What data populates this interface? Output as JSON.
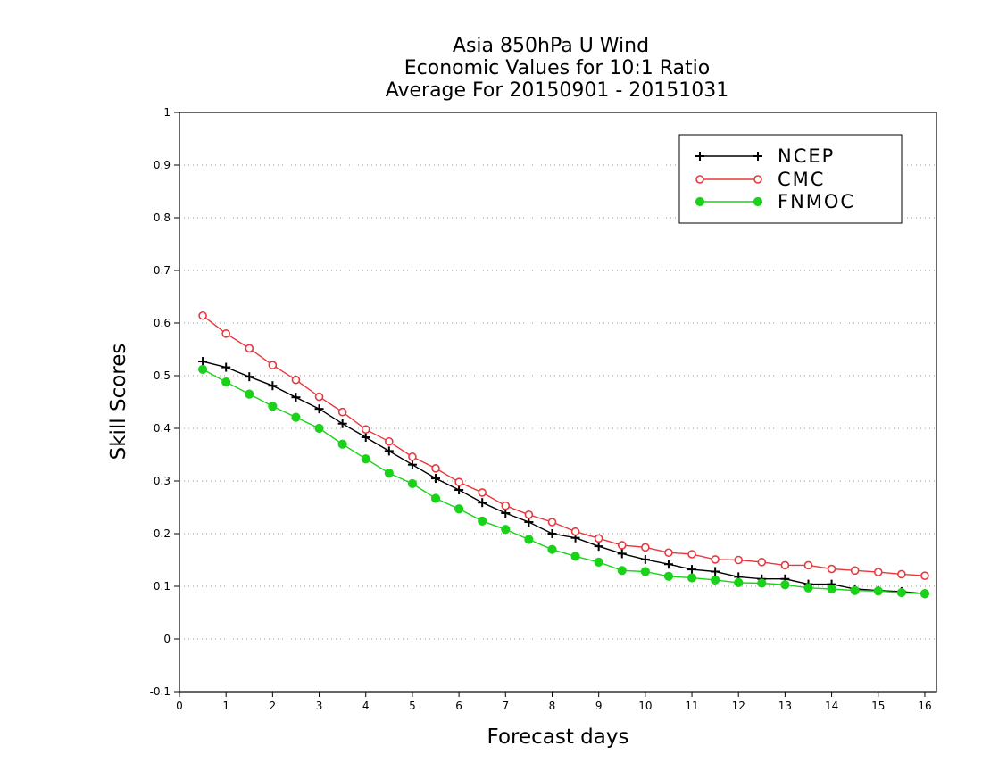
{
  "chart_data": {
    "type": "line",
    "title_lines": [
      "Asia 850hPa U Wind",
      "Economic Values for 10:1 Ratio",
      "Average For 20150901 - 20151031"
    ],
    "xlabel": "Forecast days",
    "ylabel": "Skill Scores",
    "xlim": [
      0,
      16.25
    ],
    "ylim": [
      -0.1,
      1
    ],
    "x_ticks": [
      0,
      1,
      2,
      3,
      4,
      5,
      6,
      7,
      8,
      9,
      10,
      11,
      12,
      13,
      14,
      15,
      16
    ],
    "x_tick_labels": [
      "0",
      "1",
      "2",
      "3",
      "4",
      "5",
      "6",
      "7",
      "8",
      "9",
      "10",
      "11",
      "12",
      "13",
      "14",
      "15",
      "16"
    ],
    "y_ticks": [
      -0.1,
      0,
      0.1,
      0.2,
      0.3,
      0.4,
      0.5,
      0.6,
      0.7,
      0.8,
      0.9,
      1
    ],
    "y_tick_labels": [
      "-0.1",
      "0",
      "0.1",
      "0.2",
      "0.3",
      "0.4",
      "0.5",
      "0.6",
      "0.7",
      "0.8",
      "0.9",
      "1"
    ],
    "grid": "horizontal-dotted",
    "legend_position": "top-right",
    "x": [
      0.5,
      1,
      1.5,
      2,
      2.5,
      3,
      3.5,
      4,
      4.5,
      5,
      5.5,
      6,
      6.5,
      7,
      7.5,
      8,
      8.5,
      9,
      9.5,
      10,
      10.5,
      11,
      11.5,
      12,
      12.5,
      13,
      13.5,
      14,
      14.5,
      15,
      15.5,
      16
    ],
    "series": [
      {
        "name": "NCEP",
        "color": "#000000",
        "marker": "plus",
        "values": [
          0.527,
          0.516,
          0.498,
          0.481,
          0.459,
          0.437,
          0.409,
          0.383,
          0.357,
          0.331,
          0.305,
          0.283,
          0.259,
          0.239,
          0.222,
          0.2,
          0.192,
          0.176,
          0.162,
          0.151,
          0.142,
          0.132,
          0.128,
          0.118,
          0.114,
          0.114,
          0.104,
          0.104,
          0.095,
          0.092,
          0.09,
          0.086
        ]
      },
      {
        "name": "CMC",
        "color": "#e8383d",
        "marker": "open-circle",
        "values": [
          0.614,
          0.58,
          0.552,
          0.52,
          0.492,
          0.46,
          0.431,
          0.398,
          0.375,
          0.346,
          0.324,
          0.298,
          0.278,
          0.253,
          0.236,
          0.222,
          0.204,
          0.191,
          0.178,
          0.174,
          0.164,
          0.161,
          0.151,
          0.15,
          0.146,
          0.14,
          0.14,
          0.133,
          0.13,
          0.127,
          0.123,
          0.12
        ]
      },
      {
        "name": "FNMOC",
        "color": "#19d319",
        "marker": "filled-circle",
        "values": [
          0.512,
          0.488,
          0.465,
          0.442,
          0.421,
          0.4,
          0.37,
          0.342,
          0.315,
          0.295,
          0.267,
          0.247,
          0.224,
          0.208,
          0.189,
          0.17,
          0.157,
          0.146,
          0.13,
          0.128,
          0.119,
          0.116,
          0.112,
          0.107,
          0.106,
          0.103,
          0.097,
          0.095,
          0.092,
          0.091,
          0.088,
          0.086
        ]
      }
    ]
  }
}
